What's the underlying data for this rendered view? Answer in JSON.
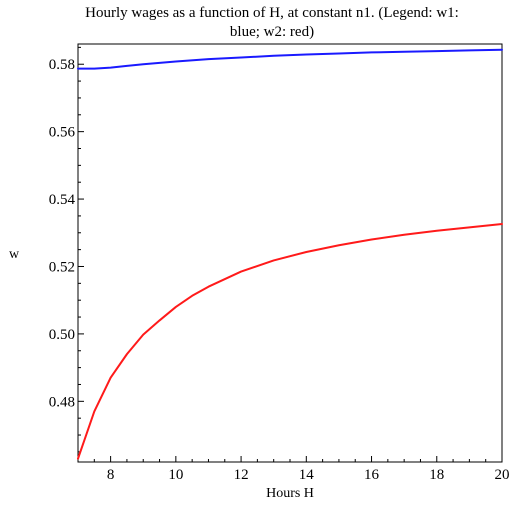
{
  "chart_data": {
    "type": "line",
    "title": "Hourly wages as a function of H, at constant n1. (Legend: w1: blue; w2: red)",
    "title_lines": [
      "Hourly wages as a function of H, at constant n1. (Legend: w1:",
      "blue; w2: red)"
    ],
    "xlabel": "Hours H",
    "ylabel": "w",
    "xlim": [
      7,
      20
    ],
    "ylim": [
      0.462,
      0.586
    ],
    "x_ticks": [
      8,
      10,
      12,
      14,
      16,
      18,
      20
    ],
    "y_ticks": [
      0.48,
      0.5,
      0.52,
      0.54,
      0.56,
      0.58
    ],
    "y_tick_labels": [
      "0.48",
      "0.50",
      "0.52",
      "0.54",
      "0.56",
      "0.58"
    ],
    "grid": false,
    "legend": "none",
    "series": [
      {
        "name": "w1",
        "color": "#1a1aff",
        "x": [
          7,
          7.5,
          8,
          8.5,
          9,
          10,
          11,
          12,
          13,
          14,
          15,
          16,
          17,
          18,
          19,
          20
        ],
        "y": [
          0.5787,
          0.5787,
          0.579,
          0.5795,
          0.58,
          0.5808,
          0.5815,
          0.582,
          0.5825,
          0.5829,
          0.5832,
          0.5835,
          0.5837,
          0.5839,
          0.5841,
          0.5843
        ]
      },
      {
        "name": "w2",
        "color": "#ff1a1a",
        "x": [
          7,
          7.25,
          7.5,
          7.75,
          8,
          8.5,
          9,
          9.5,
          10,
          10.5,
          11,
          12,
          13,
          14,
          15,
          16,
          17,
          18,
          19,
          20
        ],
        "y": [
          0.463,
          0.47,
          0.477,
          0.482,
          0.487,
          0.494,
          0.4998,
          0.504,
          0.508,
          0.5113,
          0.514,
          0.5185,
          0.5218,
          0.5243,
          0.5263,
          0.528,
          0.5294,
          0.5306,
          0.5316,
          0.5326
        ]
      }
    ]
  }
}
